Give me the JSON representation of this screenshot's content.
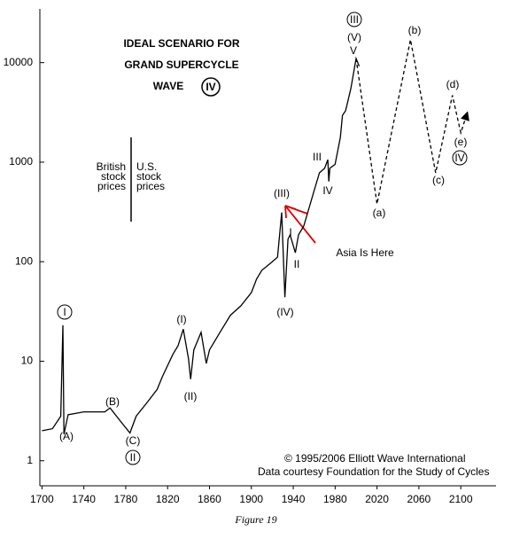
{
  "chart_data": {
    "type": "line",
    "title_lines": [
      "IDEAL SCENARIO FOR",
      "GRAND SUPERCYCLE",
      "WAVE"
    ],
    "title_circled": "IV",
    "log_y": true,
    "xlim": [
      1698,
      2132
    ],
    "ylim": [
      0.56,
      34700
    ],
    "xticks": [
      1700,
      1740,
      1780,
      1820,
      1860,
      1900,
      1940,
      1980,
      2020,
      2060,
      2100
    ],
    "yticks": [
      1,
      10,
      100,
      1000,
      10000
    ],
    "series": [
      {
        "color": "#000000",
        "dashed": false,
        "x": [
          1700,
          1710,
          1718,
          1720,
          1721,
          1725,
          1740,
          1760,
          1765,
          1775,
          1784,
          1790,
          1800,
          1810,
          1815,
          1825,
          1830,
          1835,
          1840,
          1842,
          1845,
          1852,
          1857,
          1860,
          1870,
          1880,
          1890,
          1900,
          1905,
          1910,
          1920,
          1925,
          1929,
          1932,
          1935,
          1937,
          1942,
          1945,
          1950,
          1960,
          1965,
          1970,
          1973,
          1974,
          1975,
          1980,
          1985,
          1987,
          1990,
          1995,
          2000,
          2003
        ],
        "values": [
          2.0,
          2.1,
          2.8,
          23,
          1.85,
          2.9,
          3.1,
          3.1,
          3.4,
          2.5,
          1.9,
          2.8,
          3.8,
          5.2,
          7.0,
          11.7,
          14.3,
          21,
          10.6,
          6.6,
          13,
          19.5,
          9.5,
          13,
          19.5,
          29,
          36,
          49,
          67,
          82,
          100,
          111,
          312,
          44,
          168,
          186,
          123,
          186,
          228,
          520,
          780,
          870,
          1060,
          640,
          870,
          950,
          1770,
          2950,
          3300,
          5500,
          11000,
          9200
        ]
      },
      {
        "color": "#000000",
        "dashed": true,
        "x": [
          2000,
          2020,
          2052,
          2076,
          2092,
          2100,
          2106
        ],
        "values": [
          11000,
          380,
          17000,
          780,
          4700,
          1970,
          3100
        ]
      }
    ],
    "annotations": [
      "I",
      "(A)",
      "(B)",
      "(C)",
      "II",
      "(I)",
      "(II)",
      "(III)",
      "I",
      "II",
      "(IV)",
      "III",
      "IV",
      "III",
      "(V)",
      "V",
      "(b)",
      "(a)",
      "(d)",
      "(c)",
      "(e)",
      "IV",
      "Asia Is Here"
    ],
    "british_label": [
      "British",
      "stock",
      "prices"
    ],
    "us_label": [
      "U.S.",
      "stock",
      "prices"
    ],
    "credits": [
      "© 1995/2006 Elliott Wave International",
      "Data courtesy Foundation for the Study of Cycles"
    ],
    "caption": "Figure 19"
  }
}
